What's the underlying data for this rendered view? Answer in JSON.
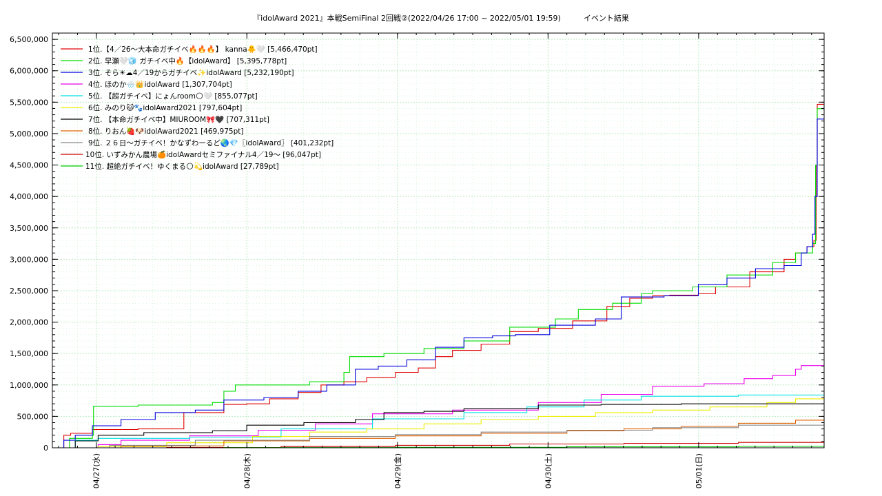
{
  "chart_data": {
    "type": "line",
    "title": "『idolAward 2021』本戦SemiFinal 2回戦②(2022/04/26 17:00 ~ 2022/05/01 19:59)　　　イベント結果",
    "xlabel": "",
    "ylabel": "",
    "x_range": [
      "04/26 17:00",
      "05/01 19:59"
    ],
    "x_ticks": [
      "04/27(水)",
      "04/28(木)",
      "04/29(金)",
      "04/30(土)",
      "05/01(日)"
    ],
    "ylim": [
      0,
      6600000
    ],
    "y_ticks": [
      "0",
      "500,000",
      "1,000,000",
      "1,500,000",
      "2,000,000",
      "2,500,000",
      "3,000,000",
      "3,500,000",
      "4,000,000",
      "4,500,000",
      "5,000,000",
      "5,500,000",
      "6,000,000",
      "6,500,000"
    ],
    "grid": true,
    "legend_position": "top-left",
    "series": [
      {
        "name": "1位.【4／26〜大本命ガチイベ🔥🔥🔥】 kanna🐥🤍 [5,466,470pt]",
        "color": "#e00000",
        "points": [
          [
            0,
            0
          ],
          [
            2,
            200000
          ],
          [
            3.2,
            230000
          ],
          [
            7,
            290000
          ],
          [
            15,
            300000
          ],
          [
            23,
            560000
          ],
          [
            30,
            690000
          ],
          [
            34,
            700000
          ],
          [
            38,
            780000
          ],
          [
            43,
            880000
          ],
          [
            47,
            1000000
          ],
          [
            51,
            1050000
          ],
          [
            55,
            1120000
          ],
          [
            60,
            1200000
          ],
          [
            64,
            1270000
          ],
          [
            67,
            1450000
          ],
          [
            70,
            1550000
          ],
          [
            75,
            1650000
          ],
          [
            80,
            1850000
          ],
          [
            85,
            1900000
          ],
          [
            91,
            2020000
          ],
          [
            97,
            2250000
          ],
          [
            101,
            2380000
          ],
          [
            105,
            2420000
          ],
          [
            108,
            2430000
          ],
          [
            113,
            2450000
          ],
          [
            116,
            2560000
          ],
          [
            122,
            2800000
          ],
          [
            128,
            3000000
          ],
          [
            130,
            3100000
          ],
          [
            132,
            3200000
          ],
          [
            133.2,
            3300000
          ],
          [
            133.6,
            4500000
          ],
          [
            133.8,
            5466470
          ],
          [
            135,
            5466470
          ]
        ]
      },
      {
        "name": "2位. 早瀬🤍🧊 ガチイベ中🔥【idolAward】 [5,395,778pt]",
        "color": "#00dd00",
        "points": [
          [
            0,
            0
          ],
          [
            3,
            150000
          ],
          [
            7,
            200000
          ],
          [
            7.2,
            660000
          ],
          [
            15,
            680000
          ],
          [
            28,
            720000
          ],
          [
            30,
            900000
          ],
          [
            32,
            1000000
          ],
          [
            45,
            1050000
          ],
          [
            51,
            1200000
          ],
          [
            52,
            1450000
          ],
          [
            58,
            1500000
          ],
          [
            65,
            1580000
          ],
          [
            72,
            1700000
          ],
          [
            80,
            1920000
          ],
          [
            88,
            2050000
          ],
          [
            92,
            2200000
          ],
          [
            98,
            2300000
          ],
          [
            103,
            2450000
          ],
          [
            105,
            2500000
          ],
          [
            109,
            2500000
          ],
          [
            112,
            2560000
          ],
          [
            118,
            2750000
          ],
          [
            126,
            2950000
          ],
          [
            130,
            3100000
          ],
          [
            133,
            3250000
          ],
          [
            133.5,
            4500000
          ],
          [
            133.8,
            5395778
          ],
          [
            135,
            5395778
          ]
        ]
      },
      {
        "name": "3位. そら☀︎☁︎4／19からガチイベ✨idolAward [5,232,190pt]",
        "color": "#0000dd",
        "points": [
          [
            0,
            0
          ],
          [
            2,
            120000
          ],
          [
            4,
            200000
          ],
          [
            7,
            350000
          ],
          [
            12,
            450000
          ],
          [
            18,
            560000
          ],
          [
            25,
            600000
          ],
          [
            30,
            760000
          ],
          [
            37,
            800000
          ],
          [
            43,
            900000
          ],
          [
            48,
            1000000
          ],
          [
            53,
            1250000
          ],
          [
            57,
            1300000
          ],
          [
            62,
            1400000
          ],
          [
            67,
            1600000
          ],
          [
            72,
            1750000
          ],
          [
            77,
            1780000
          ],
          [
            81,
            1800000
          ],
          [
            87,
            1950000
          ],
          [
            95,
            2050000
          ],
          [
            99,
            2050000
          ],
          [
            99.5,
            2400000
          ],
          [
            107,
            2420000
          ],
          [
            113,
            2600000
          ],
          [
            118,
            2700000
          ],
          [
            123,
            2850000
          ],
          [
            128,
            2900000
          ],
          [
            131,
            3100000
          ],
          [
            132,
            3200000
          ],
          [
            133,
            3400000
          ],
          [
            133.4,
            4000000
          ],
          [
            133.8,
            5232190
          ],
          [
            135,
            5232190
          ]
        ]
      },
      {
        "name": "4位. ほのか🌧️👑idolAward [1,307,704pt]",
        "color": "#ee00ee",
        "points": [
          [
            0,
            0
          ],
          [
            8,
            50000
          ],
          [
            12,
            120000
          ],
          [
            24,
            190000
          ],
          [
            36,
            280000
          ],
          [
            46,
            380000
          ],
          [
            56,
            540000
          ],
          [
            70,
            600000
          ],
          [
            85,
            720000
          ],
          [
            96,
            850000
          ],
          [
            105,
            980000
          ],
          [
            114,
            1020000
          ],
          [
            121,
            1100000
          ],
          [
            126,
            1150000
          ],
          [
            130,
            1250000
          ],
          [
            131,
            1307704
          ],
          [
            135,
            1307704
          ]
        ]
      },
      {
        "name": "5位. 【超ガチイベ】にょんroom🌕🤍 [855,077pt]",
        "color": "#00e0e0",
        "points": [
          [
            0,
            0
          ],
          [
            4,
            120000
          ],
          [
            8,
            150000
          ],
          [
            24,
            170000
          ],
          [
            40,
            300000
          ],
          [
            56,
            460000
          ],
          [
            72,
            560000
          ],
          [
            83,
            650000
          ],
          [
            93,
            760000
          ],
          [
            103,
            820000
          ],
          [
            120,
            840000
          ],
          [
            135,
            855077
          ]
        ]
      },
      {
        "name": "6位. みのり🐱🐾idolAward2021 [797,604pt]",
        "color": "#eeee00",
        "points": [
          [
            0,
            0
          ],
          [
            8,
            20000
          ],
          [
            20,
            80000
          ],
          [
            35,
            180000
          ],
          [
            45,
            250000
          ],
          [
            55,
            300000
          ],
          [
            65,
            380000
          ],
          [
            75,
            450000
          ],
          [
            85,
            500000
          ],
          [
            95,
            560000
          ],
          [
            105,
            600000
          ],
          [
            115,
            650000
          ],
          [
            125,
            720000
          ],
          [
            130,
            780000
          ],
          [
            135,
            797604
          ]
        ]
      },
      {
        "name": "7位. 【本命ガチイベ中】MIUROOM🎀🖤 [707,311pt]",
        "color": "#000000",
        "points": [
          [
            0,
            0
          ],
          [
            4,
            110000
          ],
          [
            8,
            200000
          ],
          [
            16,
            240000
          ],
          [
            28,
            270000
          ],
          [
            34,
            360000
          ],
          [
            44,
            400000
          ],
          [
            53,
            450000
          ],
          [
            58,
            560000
          ],
          [
            65,
            580000
          ],
          [
            72,
            620000
          ],
          [
            85,
            680000
          ],
          [
            96,
            690000
          ],
          [
            110,
            700000
          ],
          [
            135,
            707311
          ]
        ]
      },
      {
        "name": "8位. りおん🍓🐶idolAward2021 [469,975pt]",
        "color": "#e06000",
        "points": [
          [
            0,
            0
          ],
          [
            12,
            30000
          ],
          [
            30,
            110000
          ],
          [
            45,
            150000
          ],
          [
            60,
            190000
          ],
          [
            75,
            230000
          ],
          [
            90,
            270000
          ],
          [
            100,
            300000
          ],
          [
            110,
            340000
          ],
          [
            120,
            390000
          ],
          [
            130,
            440000
          ],
          [
            135,
            469975
          ]
        ]
      },
      {
        "name": "9位. ２６日〜ガチイベ！かなずわーるど🌏💎〖idolAward〗 [401,232pt]",
        "color": "#888888",
        "points": [
          [
            0,
            0
          ],
          [
            10,
            40000
          ],
          [
            25,
            120000
          ],
          [
            45,
            180000
          ],
          [
            60,
            210000
          ],
          [
            75,
            250000
          ],
          [
            90,
            280000
          ],
          [
            105,
            320000
          ],
          [
            120,
            360000
          ],
          [
            135,
            401232
          ]
        ]
      },
      {
        "name": "10位. いずみかん農場🍊idolAwardセミファイナル4／19〜 [96,047pt]",
        "color": "#cc0000",
        "points": [
          [
            0,
            0
          ],
          [
            20,
            5000
          ],
          [
            40,
            20000
          ],
          [
            60,
            40000
          ],
          [
            80,
            60000
          ],
          [
            100,
            70000
          ],
          [
            120,
            85000
          ],
          [
            135,
            96047
          ]
        ]
      },
      {
        "name": "11位. 超絶ガチイベ！ゆくまる🌕💫idolAward [27,789pt]",
        "color": "#00cc00",
        "points": [
          [
            0,
            0
          ],
          [
            30,
            3000
          ],
          [
            60,
            8000
          ],
          [
            90,
            15000
          ],
          [
            120,
            22000
          ],
          [
            135,
            27789
          ]
        ]
      }
    ]
  }
}
